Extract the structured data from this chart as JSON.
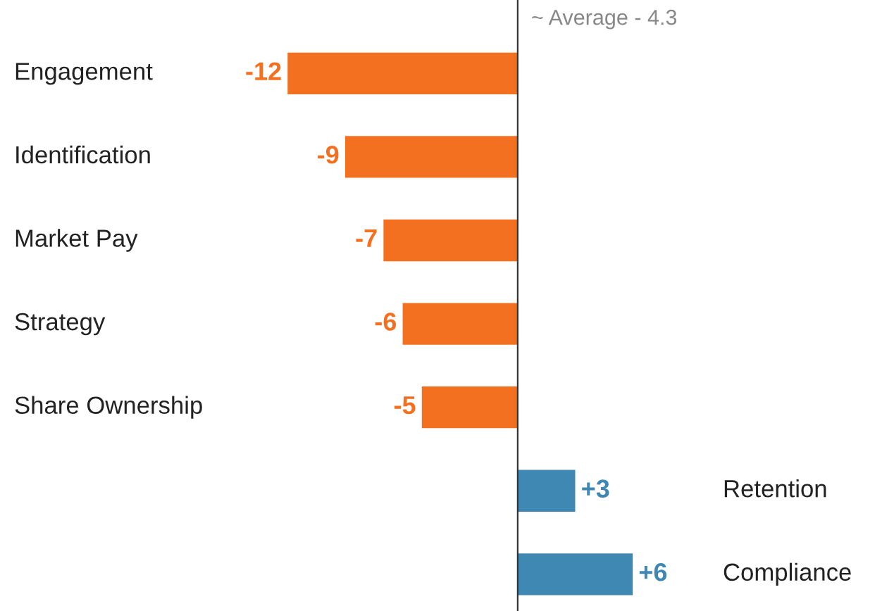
{
  "chart_data": {
    "type": "bar",
    "orientation": "horizontal",
    "categories": [
      "Engagement",
      "Identification",
      "Market Pay",
      "Strategy",
      "Share Ownership",
      "Retention",
      "Compliance"
    ],
    "values": [
      -12,
      -9,
      -7,
      -6,
      -5,
      3,
      6
    ],
    "colors": [
      "#f37021",
      "#f37021",
      "#f37021",
      "#f37021",
      "#f37021",
      "#3f88b3",
      "#3f88b3"
    ],
    "value_labels": [
      "-12",
      "-9",
      "-7",
      "-6",
      "-5",
      "+3",
      "+6"
    ],
    "xlim": [
      -27,
      19
    ],
    "annotations": [
      "~ Average - 4.3"
    ]
  }
}
